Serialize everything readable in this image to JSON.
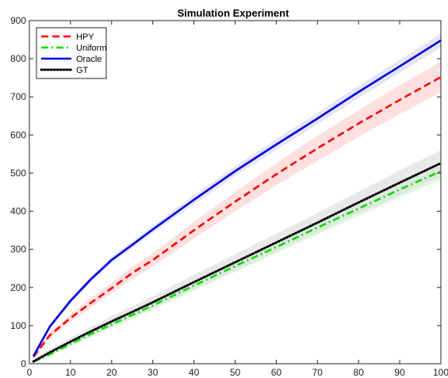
{
  "chart_data": {
    "type": "line",
    "title": "Simulation Experiment",
    "xlabel": "",
    "ylabel": "",
    "xlim": [
      0,
      100
    ],
    "ylim": [
      0,
      900
    ],
    "xticks": [
      0,
      10,
      20,
      30,
      40,
      50,
      60,
      70,
      80,
      90,
      100
    ],
    "yticks": [
      0,
      100,
      200,
      300,
      400,
      500,
      600,
      700,
      800,
      900
    ],
    "grid": false,
    "legend_position": "top-left",
    "x": [
      1,
      5,
      10,
      15,
      20,
      25,
      30,
      40,
      50,
      60,
      70,
      80,
      90,
      100
    ],
    "series": [
      {
        "name": "HPY",
        "color": "#ff0000",
        "dash": "dashed",
        "band_color": "#ffd6d6",
        "values": [
          18,
          75,
          120,
          160,
          198,
          238,
          272,
          350,
          425,
          497,
          565,
          630,
          692,
          752
        ],
        "lower": [
          15,
          68,
          110,
          148,
          185,
          222,
          255,
          328,
          400,
          468,
          532,
          595,
          655,
          712
        ],
        "upper": [
          22,
          82,
          130,
          172,
          212,
          254,
          290,
          372,
          450,
          526,
          598,
          665,
          730,
          793
        ]
      },
      {
        "name": "Uniform",
        "color": "#00e000",
        "dash": "dashdot",
        "band_color": "#d4f7d4",
        "values": [
          5,
          25,
          52,
          78,
          103,
          128,
          153,
          205,
          256,
          306,
          357,
          407,
          457,
          505
        ],
        "lower": [
          3,
          20,
          45,
          70,
          94,
          118,
          142,
          192,
          241,
          290,
          339,
          388,
          436,
          483
        ],
        "upper": [
          7,
          30,
          59,
          86,
          112,
          138,
          164,
          218,
          271,
          322,
          375,
          426,
          478,
          527
        ]
      },
      {
        "name": "Oracle",
        "color": "#0000dd",
        "dash": "solid",
        "band_color": "#dcdcf5",
        "values": [
          20,
          98,
          165,
          222,
          272,
          312,
          352,
          430,
          505,
          575,
          643,
          713,
          780,
          848
        ],
        "lower": [
          18,
          92,
          158,
          214,
          263,
          303,
          342,
          418,
          492,
          561,
          628,
          697,
          763,
          830
        ],
        "upper": [
          22,
          104,
          172,
          230,
          281,
          321,
          362,
          442,
          518,
          589,
          658,
          729,
          797,
          866
        ]
      },
      {
        "name": "GT",
        "color": "#000000",
        "dash": "dotted",
        "band_color": "#e0e0e0",
        "values": [
          6,
          30,
          58,
          85,
          111,
          136,
          161,
          214,
          266,
          318,
          370,
          423,
          475,
          526
        ],
        "lower": [
          3,
          22,
          48,
          73,
          98,
          121,
          145,
          195,
          245,
          295,
          345,
          395,
          443,
          492
        ],
        "upper": [
          9,
          38,
          68,
          97,
          124,
          151,
          177,
          233,
          287,
          341,
          395,
          451,
          507,
          560
        ]
      }
    ]
  }
}
